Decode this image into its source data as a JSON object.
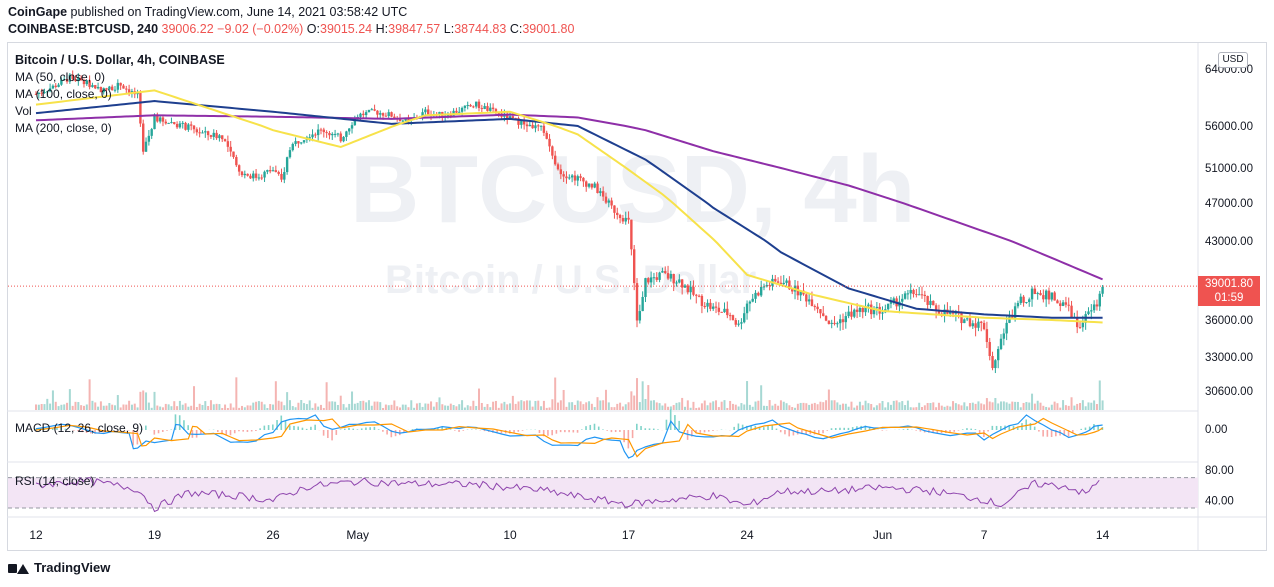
{
  "header": {
    "author": "CoinGape",
    "published_text": "published on TradingView.com, June 14, 2021 03:58:42 UTC",
    "symbol": "COINBASE:BTCUSD, 240",
    "last": "39006.22",
    "change": "−9.02 (−0.02%)",
    "o_label": "O:",
    "o": "39015.24",
    "h_label": "H:",
    "h": "39847.57",
    "l_label": "L:",
    "l": "38744.83",
    "c_label": "C:",
    "c": "39001.80"
  },
  "legend": {
    "title": "Bitcoin / U.S. Dollar, 4h, COINBASE",
    "ma50": "MA (50, close, 0)",
    "ma100": "MA (100, close, 0)",
    "vol": "Vol",
    "ma200": "MA (200, close, 0)",
    "macd": "MACD (12, 26, close, 9)",
    "rsi": "RSI (14, close)"
  },
  "watermark": {
    "big": "BTCUSD, 4h",
    "small": "Bitcoin / U.S. Dollar"
  },
  "currency": "USD",
  "price_tag": {
    "price": "39001.80",
    "countdown": "01:59"
  },
  "footer": {
    "brand": "TradingView"
  },
  "colors": {
    "up": "#26a69a",
    "down": "#ef5350",
    "ma50": "#f7e24a",
    "ma100": "#1e3f8f",
    "ma200": "#8e2fa8",
    "macd": "#2196f3",
    "signal": "#ff9800",
    "rsi": "#8e44ad"
  },
  "chart_data": {
    "type": "candlestick",
    "price_axis": {
      "ticks": [
        "64000.00",
        "56000.00",
        "51000.00",
        "47000.00",
        "43000.00",
        "36000.00",
        "33000.00",
        "30600.00"
      ],
      "tick_values": [
        64000,
        56000,
        51000,
        47000,
        43000,
        36000,
        33000,
        30600
      ]
    },
    "macd_axis": {
      "ticks": [
        "0.00"
      ],
      "tick_values": [
        0
      ]
    },
    "rsi_axis": {
      "ticks": [
        "80.00",
        "40.00"
      ],
      "tick_values": [
        80,
        40
      ],
      "band": [
        30,
        70
      ]
    },
    "x_axis": {
      "labels": [
        "12",
        "19",
        "26",
        "May",
        "10",
        "17",
        "24",
        "Jun",
        "7",
        "14"
      ],
      "days": [
        0,
        7,
        14,
        19,
        28,
        35,
        42,
        50,
        56,
        63
      ]
    },
    "price_series": [
      [
        0,
        60500
      ],
      [
        1,
        61500
      ],
      [
        2,
        62800
      ],
      [
        3,
        62000
      ],
      [
        4,
        61000
      ],
      [
        5,
        61800
      ],
      [
        6,
        60200
      ],
      [
        6.3,
        52500
      ],
      [
        7,
        57000
      ],
      [
        8,
        56500
      ],
      [
        9,
        55800
      ],
      [
        10,
        55000
      ],
      [
        11,
        54800
      ],
      [
        12,
        50500
      ],
      [
        13,
        50000
      ],
      [
        14,
        50800
      ],
      [
        14.5,
        49500
      ],
      [
        15,
        53500
      ],
      [
        16,
        55000
      ],
      [
        17,
        55500
      ],
      [
        18,
        54500
      ],
      [
        19,
        57500
      ],
      [
        20,
        58000
      ],
      [
        21,
        57500
      ],
      [
        22,
        56500
      ],
      [
        23,
        58000
      ],
      [
        24,
        57500
      ],
      [
        25,
        58200
      ],
      [
        26,
        59000
      ],
      [
        27,
        58000
      ],
      [
        28,
        57000
      ],
      [
        29,
        56200
      ],
      [
        30,
        55500
      ],
      [
        30.5,
        52500
      ],
      [
        31,
        50500
      ],
      [
        32,
        49800
      ],
      [
        33,
        48800
      ],
      [
        34,
        46500
      ],
      [
        35,
        45000
      ],
      [
        35.5,
        36000
      ],
      [
        36,
        39500
      ],
      [
        37,
        40000
      ],
      [
        38,
        39500
      ],
      [
        39,
        38000
      ],
      [
        40,
        37000
      ],
      [
        41,
        36500
      ],
      [
        41.5,
        35500
      ],
      [
        42,
        37500
      ],
      [
        43,
        39000
      ],
      [
        44,
        39500
      ],
      [
        45,
        38500
      ],
      [
        46,
        37500
      ],
      [
        47,
        35500
      ],
      [
        48,
        36500
      ],
      [
        49,
        37000
      ],
      [
        50,
        36800
      ],
      [
        51,
        37800
      ],
      [
        52,
        38500
      ],
      [
        53,
        37000
      ],
      [
        54,
        36500
      ],
      [
        55,
        36000
      ],
      [
        56,
        35500
      ],
      [
        56.5,
        32500
      ],
      [
        57,
        34500
      ],
      [
        58,
        37500
      ],
      [
        59,
        38500
      ],
      [
        60,
        38000
      ],
      [
        61,
        37000
      ],
      [
        61.5,
        35500
      ],
      [
        62,
        36200
      ],
      [
        62.7,
        37500
      ],
      [
        63,
        39001.8
      ]
    ],
    "ma50": [
      [
        0,
        59000
      ],
      [
        7,
        61000
      ],
      [
        14,
        55500
      ],
      [
        18,
        53500
      ],
      [
        23,
        57500
      ],
      [
        28,
        58000
      ],
      [
        32,
        55000
      ],
      [
        37,
        48000
      ],
      [
        42,
        40000
      ],
      [
        46,
        38200
      ],
      [
        50,
        36800
      ],
      [
        56,
        36200
      ],
      [
        60,
        36000
      ],
      [
        63,
        35800
      ]
    ],
    "ma100": [
      [
        0,
        57800
      ],
      [
        7,
        59500
      ],
      [
        14,
        58000
      ],
      [
        21,
        56300
      ],
      [
        28,
        57000
      ],
      [
        32,
        56000
      ],
      [
        36,
        52000
      ],
      [
        40,
        46500
      ],
      [
        44,
        42000
      ],
      [
        48,
        38800
      ],
      [
        52,
        37000
      ],
      [
        56,
        36500
      ],
      [
        60,
        36200
      ],
      [
        63,
        36200
      ]
    ],
    "ma200": [
      [
        0,
        56800
      ],
      [
        7,
        57500
      ],
      [
        14,
        57300
      ],
      [
        21,
        57000
      ],
      [
        28,
        57600
      ],
      [
        32,
        57200
      ],
      [
        36,
        55500
      ],
      [
        40,
        53000
      ],
      [
        44,
        51000
      ],
      [
        48,
        49000
      ],
      [
        52,
        46500
      ],
      [
        56,
        44000
      ],
      [
        60,
        41500
      ],
      [
        63,
        39600
      ]
    ],
    "rsi_series": [
      [
        0,
        60
      ],
      [
        3,
        66
      ],
      [
        6,
        55
      ],
      [
        7,
        30
      ],
      [
        9,
        50
      ],
      [
        12,
        46
      ],
      [
        14,
        40
      ],
      [
        16,
        58
      ],
      [
        19,
        65
      ],
      [
        22,
        62
      ],
      [
        26,
        61
      ],
      [
        30,
        53
      ],
      [
        32,
        45
      ],
      [
        35,
        35
      ],
      [
        37,
        40
      ],
      [
        40,
        46
      ],
      [
        42,
        33
      ],
      [
        44,
        52
      ],
      [
        47,
        52
      ],
      [
        50,
        57
      ],
      [
        53,
        52
      ],
      [
        56,
        41
      ],
      [
        57,
        34
      ],
      [
        59,
        62
      ],
      [
        61,
        58
      ],
      [
        62,
        48
      ],
      [
        63,
        70
      ]
    ]
  }
}
